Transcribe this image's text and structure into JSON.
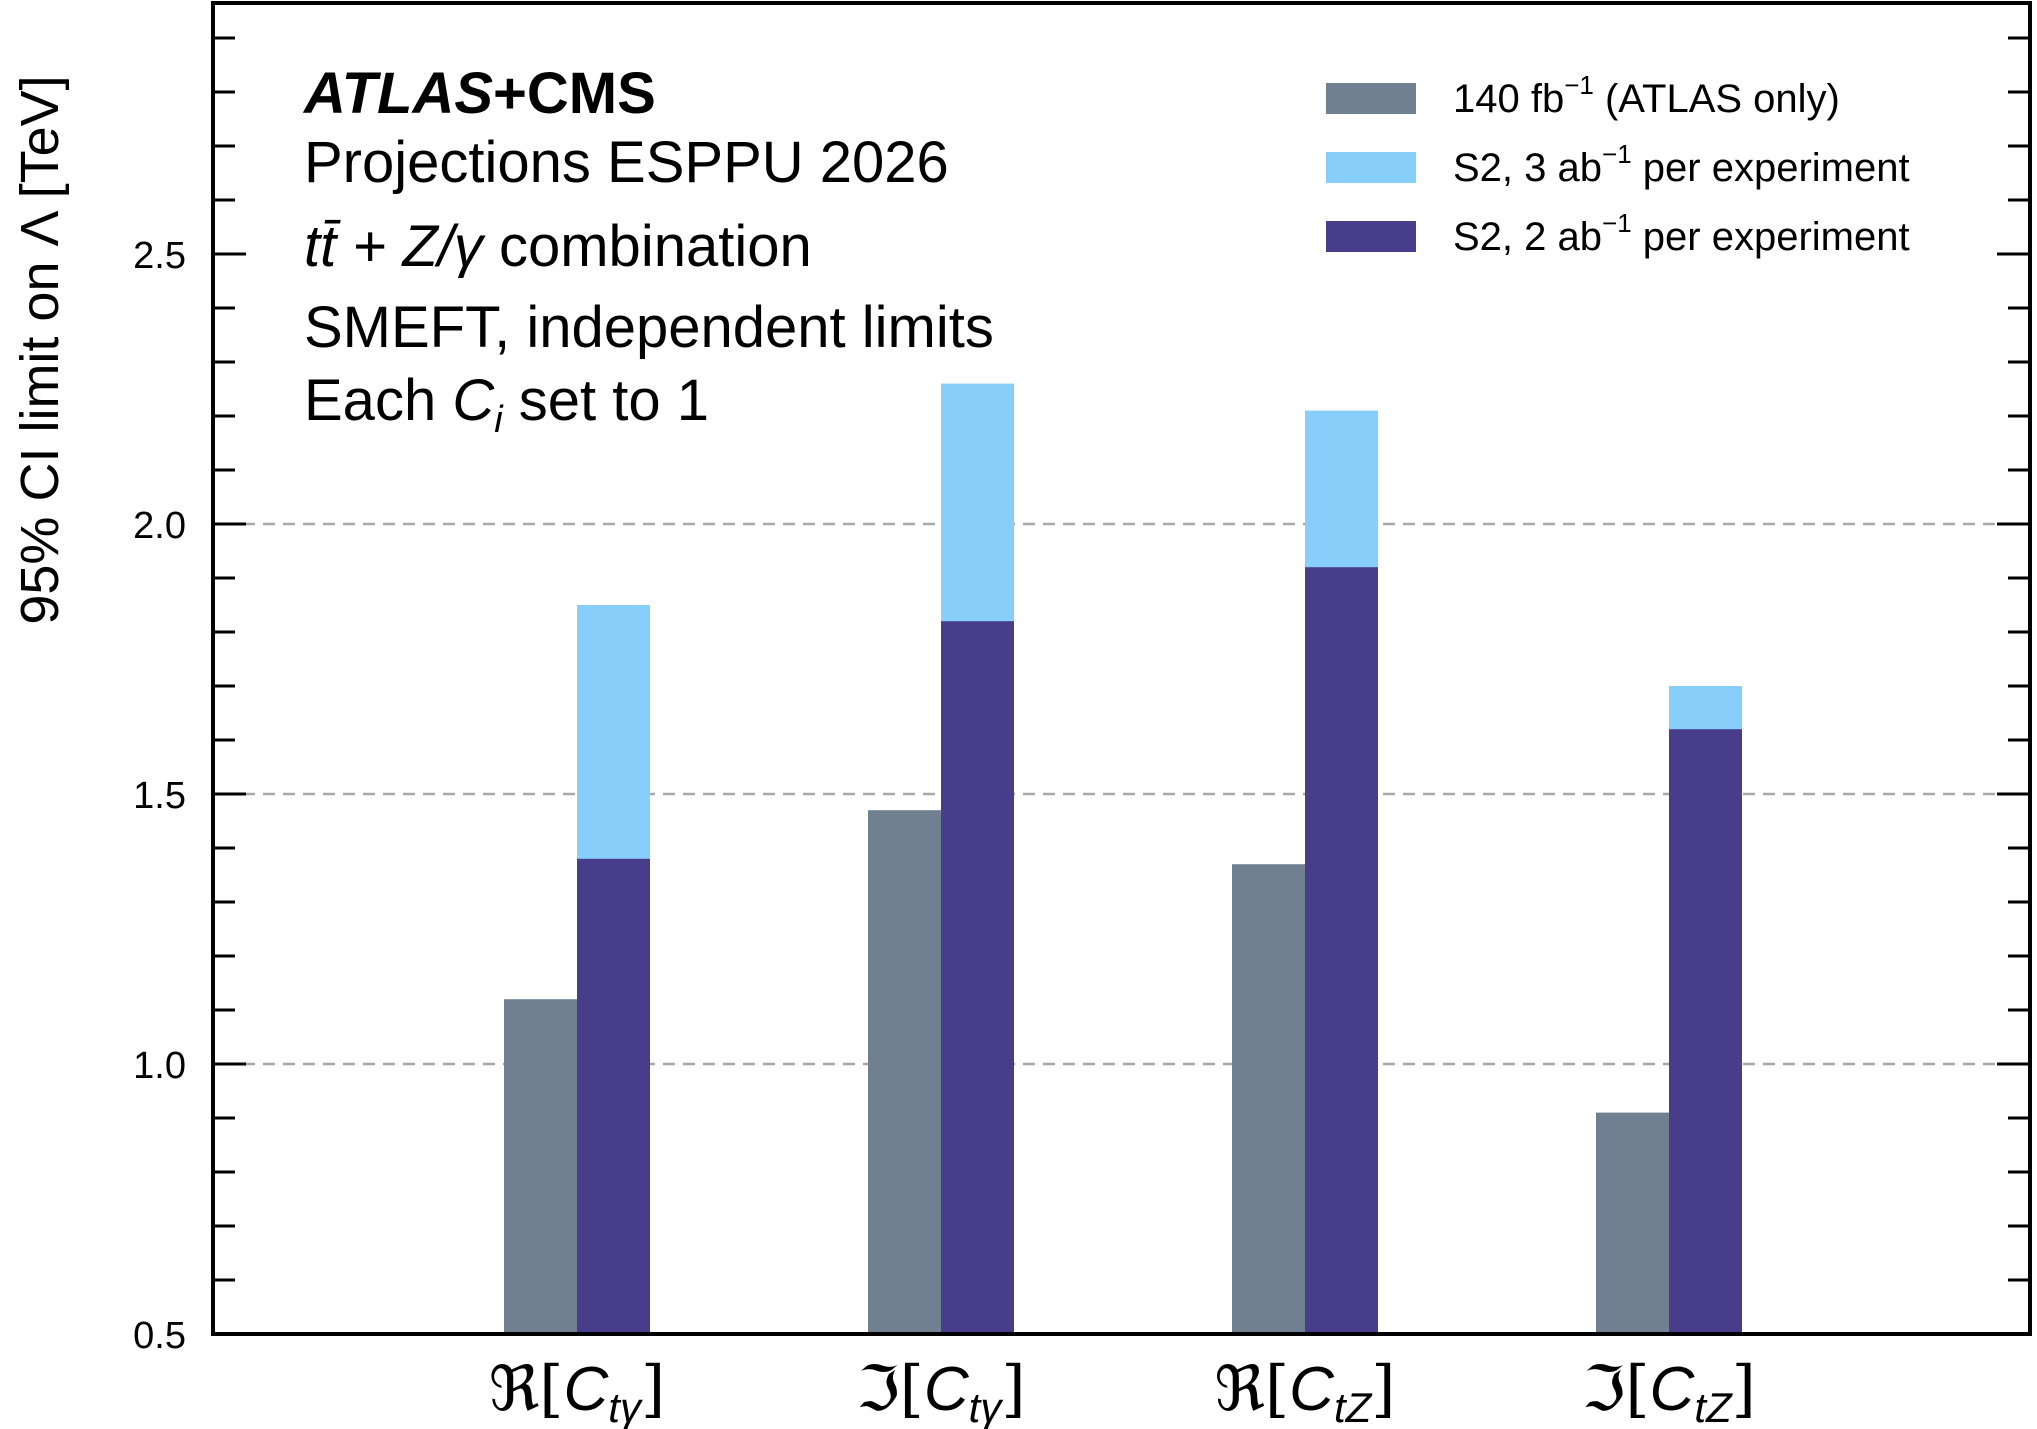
{
  "chart_data": {
    "type": "bar",
    "subtype": "grouped-overlay",
    "title": "",
    "annotation": {
      "experiment_bold": "ATLAS",
      "experiment_plus": "+CMS",
      "line1": "Projections ESPPU 2026",
      "line2_process_math": "tt̄ + Z/γ",
      "line2_suffix": " combination",
      "line3": "SMEFT, independent limits",
      "line4_prefix": "Each ",
      "line4_math": "C",
      "line4_sub": "i",
      "line4_suffix": " set to 1"
    },
    "ylabel": "95% CI limit on Λ [TeV]",
    "xlabel": "",
    "ylim": [
      0.5,
      2.97
    ],
    "yticks_major": [
      0.5,
      1.0,
      1.5,
      2.0,
      2.5
    ],
    "ytick_labels": [
      "0.5",
      "1.0",
      "1.5",
      "2.0",
      "2.5"
    ],
    "yminor_step": 0.1,
    "grid": {
      "y_dashed_at": [
        1.0,
        1.5,
        2.0
      ]
    },
    "categories": [
      {
        "prefix": "ℜ",
        "sym": "C",
        "sub": "tγ"
      },
      {
        "prefix": "ℑ",
        "sym": "C",
        "sub": "tγ"
      },
      {
        "prefix": "ℜ",
        "sym": "C",
        "sub": "tZ"
      },
      {
        "prefix": "ℑ",
        "sym": "C",
        "sub": "tZ"
      }
    ],
    "series": [
      {
        "name": "140 fb⁻¹ (ATLAS only)",
        "label_main": "140 fb",
        "label_sup": "−1",
        "label_rest": " (ATLAS only)",
        "color": "#708090",
        "position": "left",
        "values": [
          1.12,
          1.47,
          1.37,
          0.91
        ]
      },
      {
        "name": "S2, 3 ab⁻¹ per experiment",
        "label_main": "S2, 3 ab",
        "label_sup": "−1",
        "label_rest": " per experiment",
        "color": "#87CEFA",
        "position": "right",
        "values": [
          1.85,
          2.26,
          2.21,
          1.7
        ]
      },
      {
        "name": "S2, 2 ab⁻¹ per experiment",
        "label_main": "S2, 2 ab",
        "label_sup": "−1",
        "label_rest": " per experiment",
        "color": "#483D8B",
        "position": "right",
        "values": [
          1.38,
          1.82,
          1.92,
          1.62
        ]
      }
    ],
    "legend": {
      "placement": "top-right"
    }
  }
}
